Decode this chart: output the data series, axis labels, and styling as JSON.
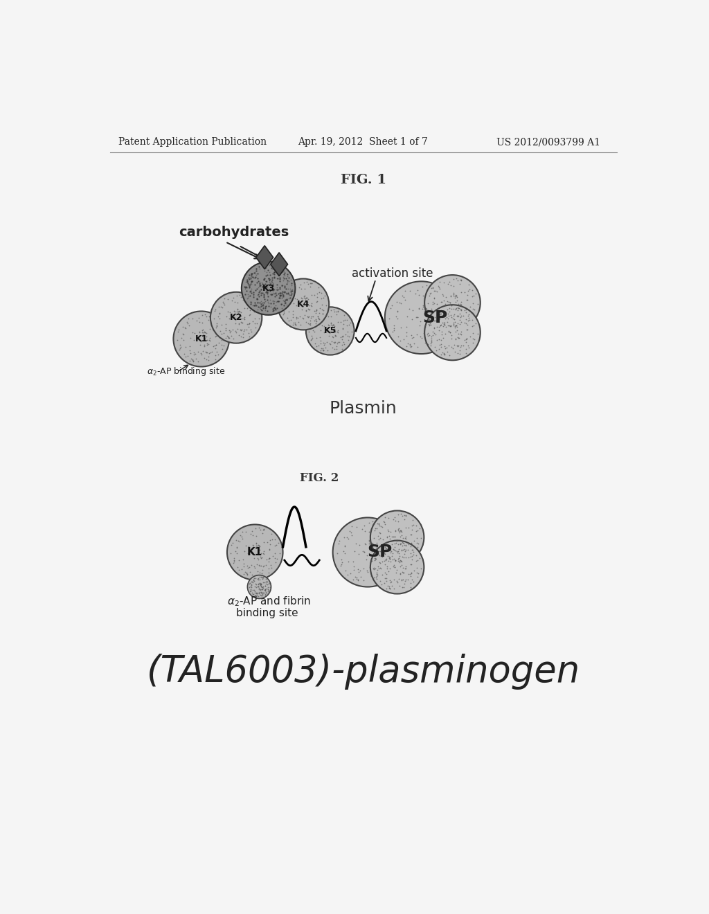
{
  "bg_color": "#f5f5f5",
  "header_left": "Patent Application Publication",
  "header_mid": "Apr. 19, 2012  Sheet 1 of 7",
  "header_right": "US 2012/0093799 A1",
  "fig1_title": "FIG. 1",
  "fig1_label": "Plasmin",
  "fig2_title": "FIG. 2",
  "fig2_label": "(TAL6003)-plasminogen",
  "kringle_color": "#b8b8b8",
  "kringle_dark": "#909090",
  "sp_color": "#c0c0c0",
  "carb_color": "#555555"
}
